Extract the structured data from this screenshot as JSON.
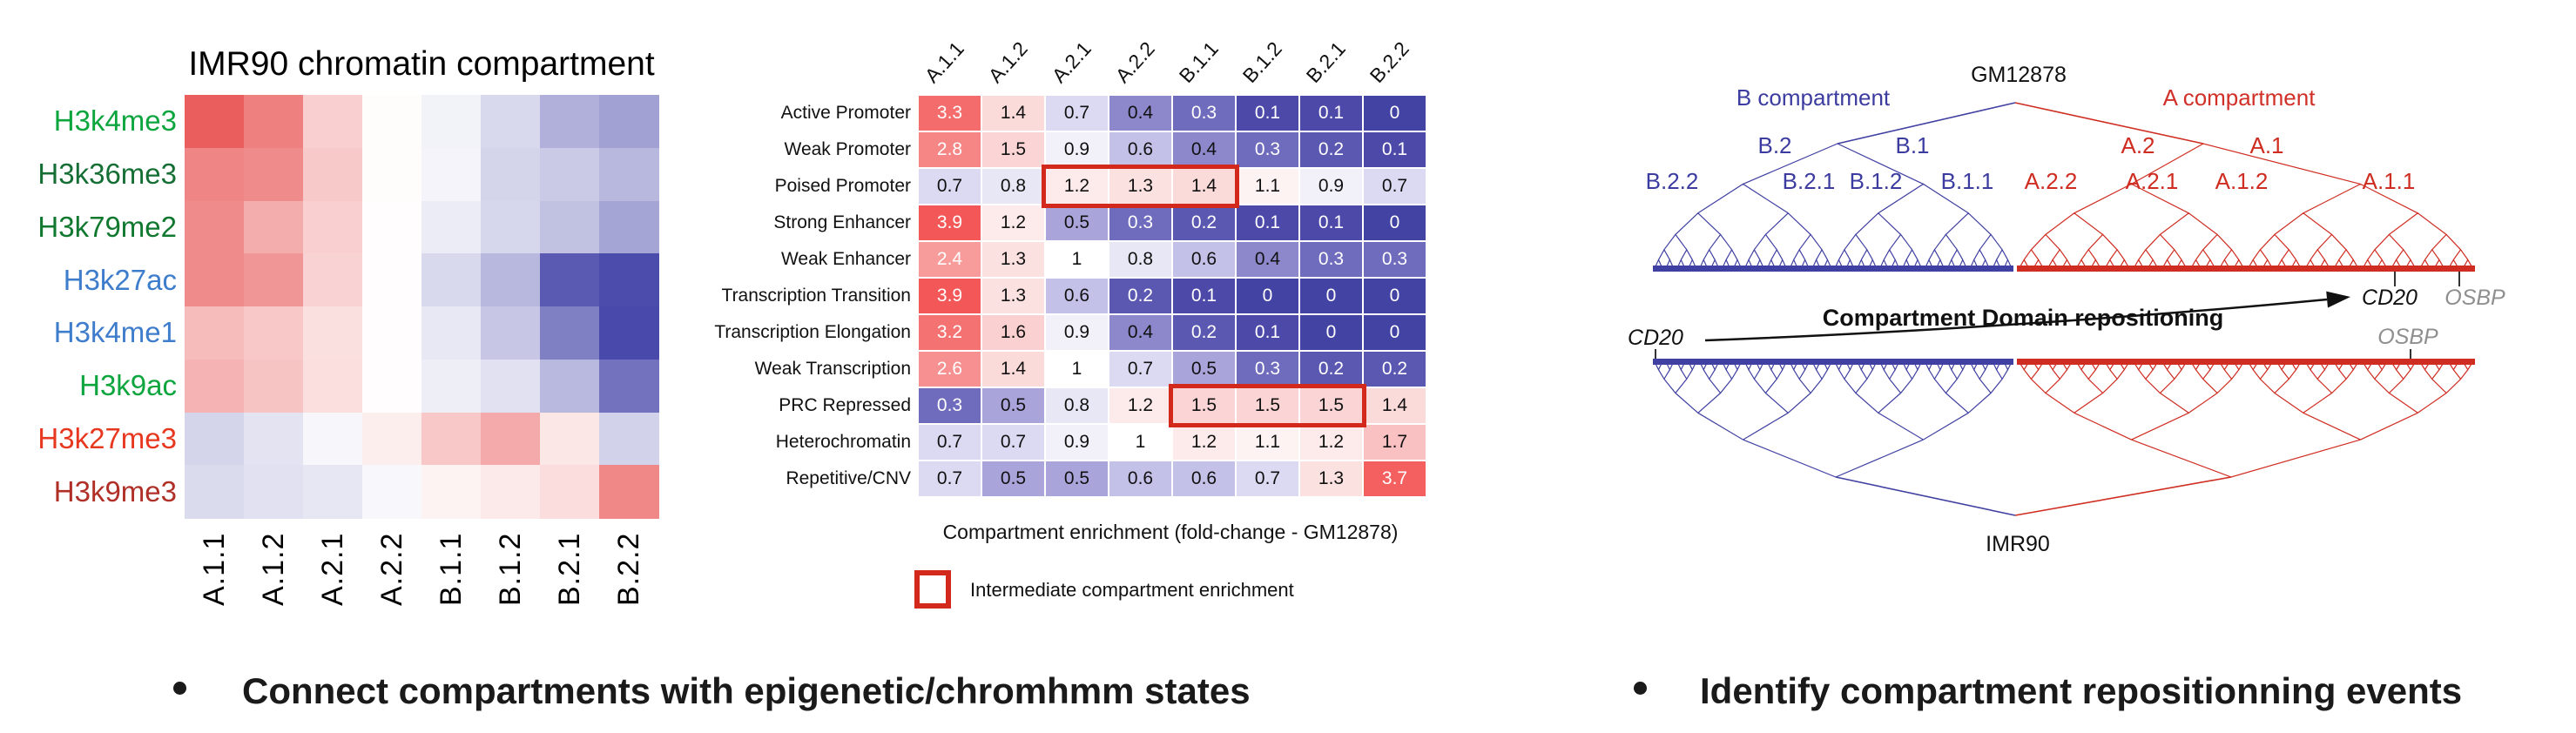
{
  "figure": {
    "background": "#ffffff"
  },
  "left_panel": {
    "title": "IMR90 chromatin compartment",
    "row_labels": [
      {
        "text": "H3k4me3",
        "color": "#0ca53e"
      },
      {
        "text": "H3k36me3",
        "color": "#156f35"
      },
      {
        "text": "H3k79me2",
        "color": "#10782f"
      },
      {
        "text": "H3k27ac",
        "color": "#3e7ccc"
      },
      {
        "text": "H3k4me1",
        "color": "#3e7ccc"
      },
      {
        "text": "H3k9ac",
        "color": "#0ca53e"
      },
      {
        "text": "H3k27me3",
        "color": "#e8371f"
      },
      {
        "text": "H3k9me3",
        "color": "#b03028"
      }
    ],
    "col_labels": [
      "A.1.1",
      "A.1.2",
      "A.2.1",
      "A.2.2",
      "B.1.1",
      "B.1.2",
      "B.2.1",
      "B.2.2"
    ]
  },
  "middle_panel": {
    "col_labels": [
      "A.1.1",
      "A.1.2",
      "A.2.1",
      "A.2.2",
      "B.1.1",
      "B.1.2",
      "B.2.1",
      "B.2.2"
    ],
    "row_labels": [
      "Active Promoter",
      "Weak Promoter",
      "Poised Promoter",
      "Strong Enhancer",
      "Weak Enhancer",
      "Transcription Transition",
      "Transcription Elongation",
      "Weak Transcription",
      "PRC Repressed",
      "Heterochromatin",
      "Repetitive/CNV"
    ],
    "caption": "Compartment enrichment (fold-change - GM12878)",
    "legend_label": "Intermediate compartment enrichment",
    "highlight_color": "#d3281c",
    "highlights": [
      {
        "row": "Poised Promoter",
        "row_index": 2,
        "col_start": 2,
        "col_end": 4,
        "cols": [
          "A.2.1",
          "A.2.2",
          "B.1.1"
        ]
      },
      {
        "row": "PRC Repressed",
        "row_index": 8,
        "col_start": 4,
        "col_end": 6,
        "cols": [
          "B.1.1",
          "B.1.2",
          "B.2.1"
        ]
      }
    ]
  },
  "right_panel": {
    "top_cell_line": "GM12878",
    "bottom_cell_line": "IMR90",
    "b_compartment_label": "B compartment",
    "a_compartment_label": "A compartment",
    "branch_labels": [
      "B.2",
      "B.1",
      "A.2",
      "A.1"
    ],
    "leaf_labels": [
      "B.2.2",
      "B.2.1",
      "B.1.2",
      "B.1.1",
      "A.2.2",
      "A.2.1",
      "A.1.2",
      "A.1.1"
    ],
    "gene_cd20": "CD20",
    "gene_osbp": "OSBP",
    "arrow_label": "Compartment Domain repositioning",
    "colors": {
      "b_tree": "#4040a2",
      "a_tree": "#cf2d22",
      "gene_gray": "#8f8f8f"
    }
  },
  "bullets": [
    {
      "text": "Connect compartments with epigenetic/chromhmm states"
    },
    {
      "text": "Identify compartment repositionning events"
    }
  ],
  "chart_data": [
    {
      "type": "heatmap",
      "title": "IMR90 chromatin compartment",
      "x_categories": [
        "A.1.1",
        "A.1.2",
        "A.2.1",
        "A.2.2",
        "B.1.1",
        "B.1.2",
        "B.2.1",
        "B.2.2"
      ],
      "y_categories": [
        "H3k4me3",
        "H3k36me3",
        "H3k79me2",
        "H3k27ac",
        "H3k4me1",
        "H3k9ac",
        "H3k27me3",
        "H3k9me3"
      ],
      "values": [
        [
          0.95,
          0.75,
          0.28,
          0.02,
          -0.07,
          -0.2,
          -0.42,
          -0.5
        ],
        [
          0.72,
          0.68,
          0.32,
          0.02,
          -0.06,
          -0.23,
          -0.28,
          -0.38
        ],
        [
          0.68,
          0.48,
          0.28,
          0.01,
          -0.1,
          -0.22,
          -0.33,
          -0.48
        ],
        [
          0.68,
          0.62,
          0.26,
          0.01,
          -0.2,
          -0.38,
          -0.88,
          -0.95
        ],
        [
          0.4,
          0.33,
          0.18,
          0.01,
          -0.12,
          -0.3,
          -0.68,
          -0.97
        ],
        [
          0.45,
          0.35,
          0.19,
          0.01,
          -0.09,
          -0.16,
          -0.37,
          -0.75
        ],
        [
          -0.23,
          -0.15,
          -0.05,
          0.1,
          0.33,
          0.5,
          0.14,
          -0.24
        ],
        [
          -0.19,
          -0.16,
          -0.13,
          -0.04,
          0.07,
          0.13,
          0.2,
          0.7
        ]
      ],
      "value_scale": "estimated from cell color; +1 = strong red (enriched), -1 = strong blue (depleted)",
      "colormap": "diverging red-white-blue",
      "grid": false
    },
    {
      "type": "heatmap",
      "title": "Compartment enrichment (fold-change - GM12878)",
      "x_categories": [
        "A.1.1",
        "A.1.2",
        "A.2.1",
        "A.2.2",
        "B.1.1",
        "B.1.2",
        "B.2.1",
        "B.2.2"
      ],
      "y_categories": [
        "Active Promoter",
        "Weak Promoter",
        "Poised Promoter",
        "Strong Enhancer",
        "Weak Enhancer",
        "Transcription Transition",
        "Transcription Elongation",
        "Weak Transcription",
        "PRC Repressed",
        "Heterochromatin",
        "Repetitive/CNV"
      ],
      "values": [
        [
          3.3,
          1.4,
          0.7,
          0.4,
          0.3,
          0.1,
          0.1,
          0
        ],
        [
          2.8,
          1.5,
          0.9,
          0.6,
          0.4,
          0.3,
          0.2,
          0.1
        ],
        [
          0.7,
          0.8,
          1.2,
          1.3,
          1.4,
          1.1,
          0.9,
          0.7
        ],
        [
          3.9,
          1.2,
          0.5,
          0.3,
          0.2,
          0.1,
          0.1,
          0
        ],
        [
          2.4,
          1.3,
          1,
          0.8,
          0.6,
          0.4,
          0.3,
          0.3
        ],
        [
          3.9,
          1.3,
          0.6,
          0.2,
          0.1,
          0,
          0,
          0
        ],
        [
          3.2,
          1.6,
          0.9,
          0.4,
          0.2,
          0.1,
          0,
          0
        ],
        [
          2.6,
          1.4,
          1,
          0.7,
          0.5,
          0.3,
          0.2,
          0.2
        ],
        [
          0.3,
          0.5,
          0.8,
          1.2,
          1.5,
          1.5,
          1.5,
          1.4
        ],
        [
          0.7,
          0.7,
          0.9,
          1,
          1.2,
          1.1,
          1.2,
          1.7
        ],
        [
          0.7,
          0.5,
          0.5,
          0.6,
          0.6,
          0.7,
          1.3,
          3.7
        ]
      ],
      "cell_labels_shown": true,
      "highlighted_cells": {
        "label": "Intermediate compartment enrichment",
        "cells": [
          [
            "Poised Promoter",
            "A.2.1"
          ],
          [
            "Poised Promoter",
            "A.2.2"
          ],
          [
            "Poised Promoter",
            "B.1.1"
          ],
          [
            "PRC Repressed",
            "B.1.1"
          ],
          [
            "PRC Repressed",
            "B.1.2"
          ],
          [
            "PRC Repressed",
            "B.2.1"
          ]
        ]
      }
    }
  ]
}
